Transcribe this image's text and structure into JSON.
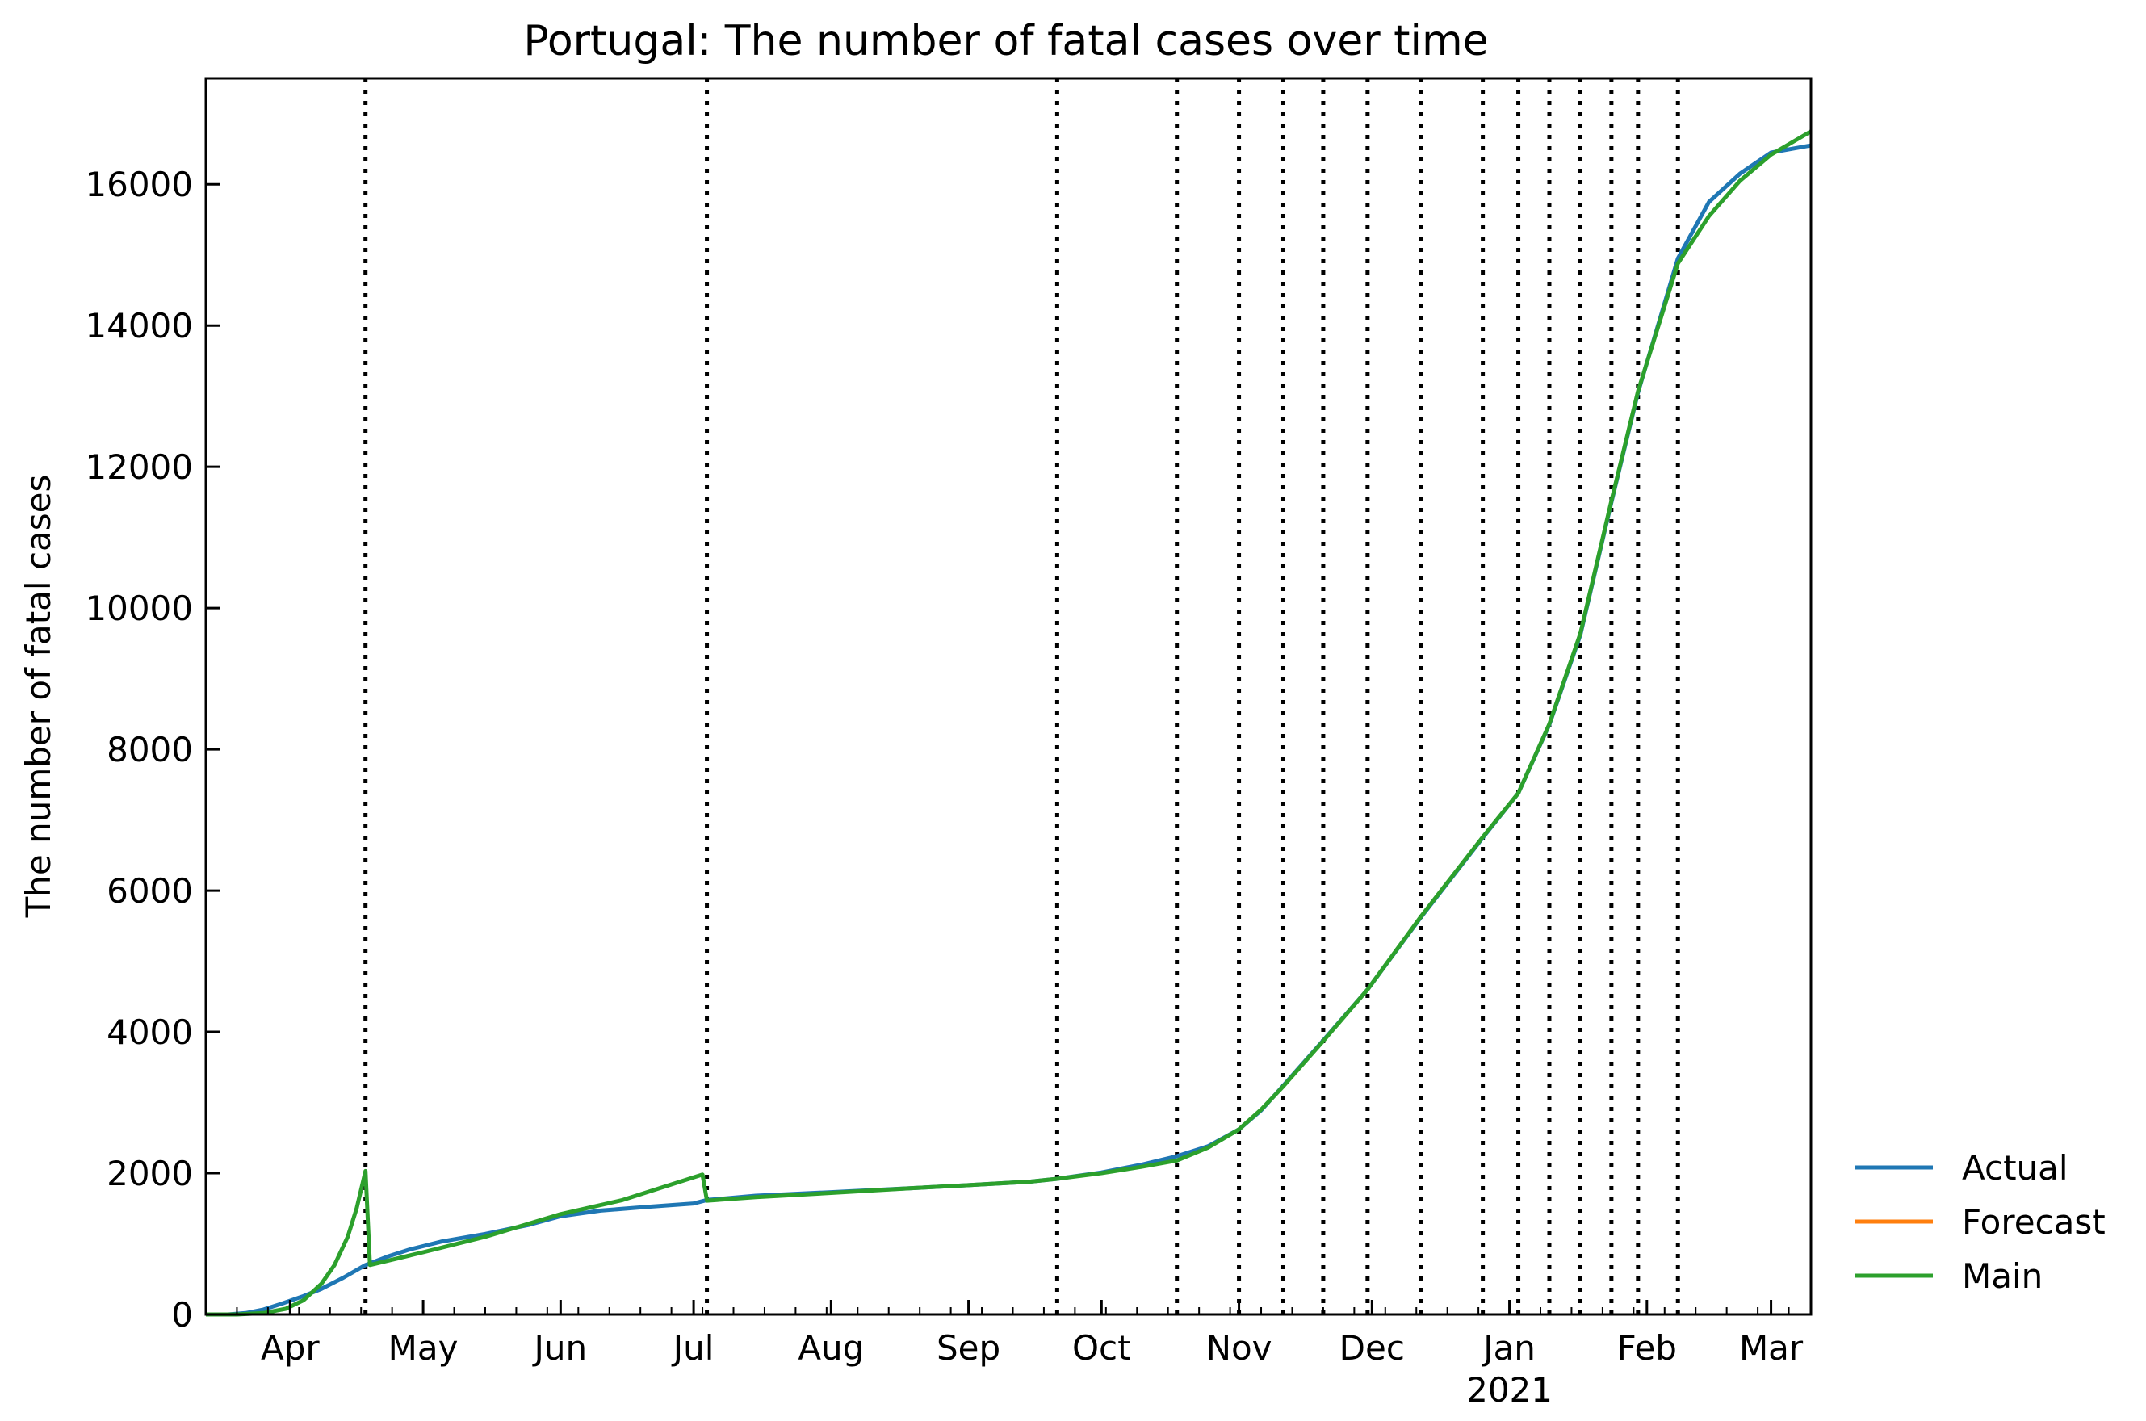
{
  "chart_data": {
    "type": "line",
    "title": "Portugal: The number of fatal cases over time",
    "xlabel": "",
    "ylabel": "The number of fatal cases",
    "x_axis_type": "date",
    "xlim": [
      "2020-03-13",
      "2021-03-10"
    ],
    "ylim": [
      0,
      17500
    ],
    "x_ticks": [
      {
        "date": "2020-04-01",
        "label": "Apr",
        "year": ""
      },
      {
        "date": "2020-05-01",
        "label": "May",
        "year": ""
      },
      {
        "date": "2020-06-01",
        "label": "Jun",
        "year": ""
      },
      {
        "date": "2020-07-01",
        "label": "Jul",
        "year": ""
      },
      {
        "date": "2020-08-01",
        "label": "Aug",
        "year": ""
      },
      {
        "date": "2020-09-01",
        "label": "Sep",
        "year": ""
      },
      {
        "date": "2020-10-01",
        "label": "Oct",
        "year": ""
      },
      {
        "date": "2020-11-01",
        "label": "Nov",
        "year": ""
      },
      {
        "date": "2020-12-01",
        "label": "Dec",
        "year": ""
      },
      {
        "date": "2021-01-01",
        "label": "Jan",
        "year": "2021"
      },
      {
        "date": "2021-02-01",
        "label": "Feb",
        "year": ""
      },
      {
        "date": "2021-03-01",
        "label": "Mar",
        "year": ""
      }
    ],
    "y_ticks": [
      0,
      2000,
      4000,
      6000,
      8000,
      10000,
      12000,
      14000,
      16000
    ],
    "grid": false,
    "legend_position": "outside-right-bottom",
    "vertical_lines": [
      "2020-04-18",
      "2020-07-04",
      "2020-09-21",
      "2020-10-18",
      "2020-11-01",
      "2020-11-11",
      "2020-11-20",
      "2020-11-30",
      "2020-12-12",
      "2020-12-26",
      "2021-01-03",
      "2021-01-10",
      "2021-01-17",
      "2021-01-24",
      "2021-01-30",
      "2021-02-08"
    ],
    "series": [
      {
        "name": "Actual",
        "color": "#1f77b4",
        "points": [
          [
            "2020-03-13",
            0
          ],
          [
            "2020-03-18",
            0
          ],
          [
            "2020-03-22",
            20
          ],
          [
            "2020-03-26",
            70
          ],
          [
            "2020-03-30",
            150
          ],
          [
            "2020-04-04",
            260
          ],
          [
            "2020-04-08",
            360
          ],
          [
            "2020-04-13",
            520
          ],
          [
            "2020-04-18",
            700
          ],
          [
            "2020-04-23",
            820
          ],
          [
            "2020-04-28",
            920
          ],
          [
            "2020-05-05",
            1030
          ],
          [
            "2020-05-15",
            1140
          ],
          [
            "2020-05-25",
            1270
          ],
          [
            "2020-06-01",
            1390
          ],
          [
            "2020-06-10",
            1470
          ],
          [
            "2020-06-20",
            1520
          ],
          [
            "2020-07-01",
            1570
          ],
          [
            "2020-07-04",
            1620
          ],
          [
            "2020-07-15",
            1680
          ],
          [
            "2020-08-01",
            1730
          ],
          [
            "2020-08-20",
            1790
          ],
          [
            "2020-09-01",
            1830
          ],
          [
            "2020-09-15",
            1880
          ],
          [
            "2020-09-21",
            1920
          ],
          [
            "2020-10-01",
            2010
          ],
          [
            "2020-10-10",
            2120
          ],
          [
            "2020-10-18",
            2240
          ],
          [
            "2020-10-25",
            2380
          ],
          [
            "2020-11-01",
            2620
          ],
          [
            "2020-11-06",
            2890
          ],
          [
            "2020-11-11",
            3240
          ],
          [
            "2020-11-20",
            3880
          ],
          [
            "2020-11-30",
            4600
          ],
          [
            "2020-12-12",
            5620
          ],
          [
            "2020-12-26",
            6750
          ],
          [
            "2021-01-03",
            7380
          ],
          [
            "2021-01-10",
            8350
          ],
          [
            "2021-01-17",
            9620
          ],
          [
            "2021-01-24",
            11500
          ],
          [
            "2021-01-30",
            13050
          ],
          [
            "2021-02-08",
            14950
          ],
          [
            "2021-02-15",
            15750
          ],
          [
            "2021-02-22",
            16150
          ],
          [
            "2021-03-01",
            16450
          ],
          [
            "2021-03-10",
            16550
          ]
        ]
      },
      {
        "name": "Forecast",
        "color": "#ff7f0e",
        "points": []
      },
      {
        "name": "Main",
        "color": "#2ca02c",
        "points": [
          [
            "2020-03-13",
            0
          ],
          [
            "2020-03-20",
            0
          ],
          [
            "2020-03-26",
            20
          ],
          [
            "2020-03-31",
            80
          ],
          [
            "2020-04-04",
            200
          ],
          [
            "2020-04-08",
            430
          ],
          [
            "2020-04-11",
            700
          ],
          [
            "2020-04-14",
            1100
          ],
          [
            "2020-04-16",
            1500
          ],
          [
            "2020-04-18",
            2030
          ],
          [
            "2020-04-19",
            700
          ],
          [
            "2020-05-01",
            880
          ],
          [
            "2020-05-15",
            1100
          ],
          [
            "2020-06-01",
            1420
          ],
          [
            "2020-06-15",
            1620
          ],
          [
            "2020-07-03",
            1980
          ],
          [
            "2020-07-04",
            1610
          ],
          [
            "2020-07-15",
            1660
          ],
          [
            "2020-08-01",
            1720
          ],
          [
            "2020-08-20",
            1790
          ],
          [
            "2020-09-01",
            1830
          ],
          [
            "2020-09-15",
            1880
          ],
          [
            "2020-09-21",
            1920
          ],
          [
            "2020-10-01",
            2000
          ],
          [
            "2020-10-10",
            2090
          ],
          [
            "2020-10-18",
            2180
          ],
          [
            "2020-10-25",
            2360
          ],
          [
            "2020-11-01",
            2620
          ],
          [
            "2020-11-06",
            2900
          ],
          [
            "2020-11-11",
            3230
          ],
          [
            "2020-11-20",
            3870
          ],
          [
            "2020-11-30",
            4600
          ],
          [
            "2020-12-12",
            5630
          ],
          [
            "2020-12-26",
            6760
          ],
          [
            "2021-01-03",
            7380
          ],
          [
            "2021-01-10",
            8360
          ],
          [
            "2021-01-17",
            9640
          ],
          [
            "2021-01-24",
            11520
          ],
          [
            "2021-01-30",
            13070
          ],
          [
            "2021-02-08",
            14880
          ],
          [
            "2021-02-15",
            15550
          ],
          [
            "2021-02-22",
            16050
          ],
          [
            "2021-03-01",
            16420
          ],
          [
            "2021-03-10",
            16750
          ]
        ]
      }
    ]
  }
}
